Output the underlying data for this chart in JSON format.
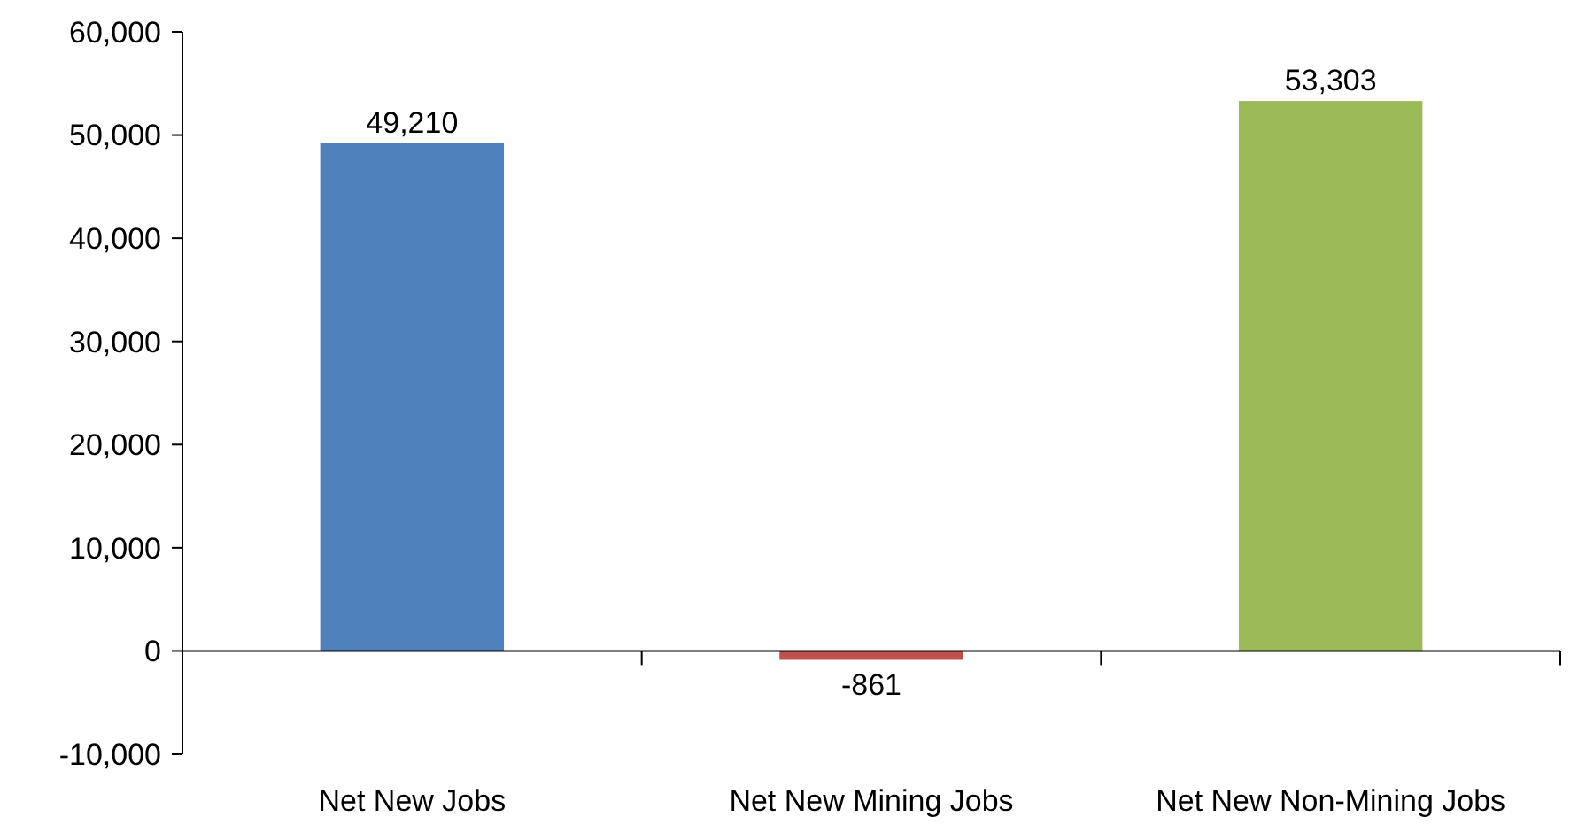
{
  "chart_data": {
    "type": "bar",
    "categories": [
      "Net New Jobs",
      "Net New Mining Jobs",
      "Net New Non-Mining Jobs"
    ],
    "values": [
      49210,
      -861,
      53303
    ],
    "colors": [
      "#4f81bd",
      "#c0504d",
      "#9bbb59"
    ],
    "ylim": [
      -10000,
      60000
    ],
    "yticks": [
      {
        "value": -10000,
        "label": "-10,000"
      },
      {
        "value": 0,
        "label": "0"
      },
      {
        "value": 10000,
        "label": "10,000"
      },
      {
        "value": 20000,
        "label": "20,000"
      },
      {
        "value": 30000,
        "label": "30,000"
      },
      {
        "value": 40000,
        "label": "40,000"
      },
      {
        "value": 50000,
        "label": "50,000"
      },
      {
        "value": 60000,
        "label": "60,000"
      }
    ],
    "value_labels": [
      "49,210",
      "-861",
      "53,303"
    ]
  }
}
